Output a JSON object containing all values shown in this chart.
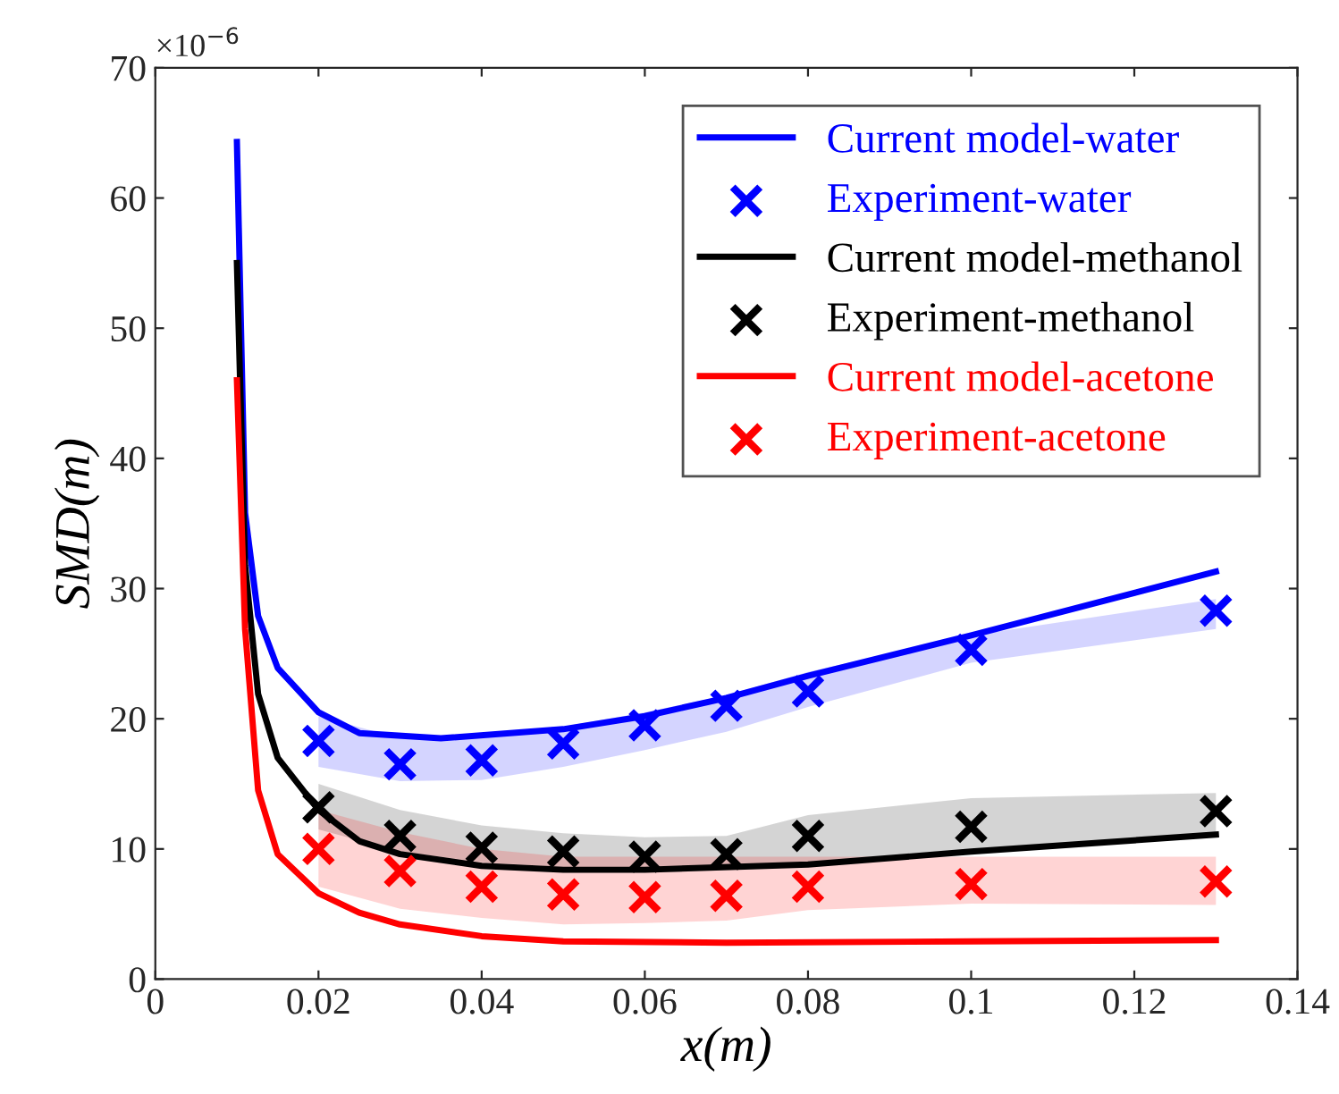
{
  "chart_data": {
    "type": "line",
    "xlabel": "x(m)",
    "ylabel": "SMD(m)",
    "annotations": [
      "×10$^{−6}$"
    ],
    "xlim": [
      0,
      0.14
    ],
    "xticks": [
      0,
      0.02,
      0.04,
      0.06,
      0.08,
      0.1,
      0.12,
      0.14
    ],
    "ylim": [
      0,
      70
    ],
    "yticks": [
      0,
      10,
      20,
      30,
      40,
      50,
      60,
      70
    ],
    "grid": false,
    "legend": "top right",
    "series": [
      {
        "name": "Current model-water",
        "color": "#0000ff",
        "x": [
          0.01,
          0.011,
          0.0126,
          0.015,
          0.02,
          0.025,
          0.035,
          0.05,
          0.06,
          0.07,
          0.08,
          0.1,
          0.13
        ],
        "values": [
          64.3,
          35.8,
          27.9,
          23.9,
          20.5,
          18.9,
          18.5,
          19.2,
          20.2,
          21.6,
          23.3,
          26.4,
          31.3
        ]
      },
      {
        "name": "Experiment-water",
        "type": "scatter",
        "marker": "cross",
        "color": "#0000ff",
        "x": [
          0.02,
          0.03,
          0.04,
          0.05,
          0.06,
          0.07,
          0.08,
          0.1,
          0.13
        ],
        "values": [
          18.3,
          16.5,
          16.8,
          18.1,
          19.5,
          21.0,
          22.1,
          25.3,
          28.3
        ],
        "lower": [
          16.3,
          15.2,
          15.3,
          16.3,
          17.6,
          19.0,
          20.9,
          24.3,
          26.9
        ],
        "upper": [
          20.2,
          18.5,
          18.5,
          19.4,
          20.5,
          21.8,
          23.6,
          26.4,
          29.2
        ]
      },
      {
        "name": "Current model-methanol",
        "color": "#000000",
        "x": [
          0.01,
          0.011,
          0.0126,
          0.015,
          0.02,
          0.025,
          0.03,
          0.04,
          0.05,
          0.06,
          0.08,
          0.1,
          0.13
        ],
        "values": [
          55.0,
          31.8,
          21.9,
          17.0,
          13.0,
          10.6,
          9.6,
          8.7,
          8.4,
          8.4,
          8.8,
          9.8,
          11.1
        ]
      },
      {
        "name": "Experiment-methanol",
        "type": "scatter",
        "marker": "cross",
        "color": "#000000",
        "x": [
          0.02,
          0.03,
          0.04,
          0.05,
          0.06,
          0.07,
          0.08,
          0.1,
          0.13
        ],
        "values": [
          13.2,
          11.0,
          10.1,
          9.8,
          9.4,
          9.6,
          11.0,
          11.7,
          12.9
        ],
        "lower": [
          11.5,
          9.8,
          9.0,
          8.6,
          8.5,
          8.6,
          9.0,
          10.0,
          11.2
        ],
        "upper": [
          15.0,
          13.0,
          11.8,
          11.2,
          10.9,
          11.0,
          12.6,
          13.9,
          14.3
        ]
      },
      {
        "name": "Current model-acetone",
        "color": "#ff0000",
        "x": [
          0.01,
          0.011,
          0.0126,
          0.015,
          0.02,
          0.025,
          0.03,
          0.04,
          0.05,
          0.07,
          0.1,
          0.13
        ],
        "values": [
          46.0,
          26.9,
          14.5,
          9.6,
          6.6,
          5.1,
          4.2,
          3.3,
          2.9,
          2.8,
          2.9,
          3.0
        ]
      },
      {
        "name": "Experiment-acetone",
        "type": "scatter",
        "marker": "cross",
        "color": "#ff0000",
        "x": [
          0.02,
          0.03,
          0.04,
          0.05,
          0.06,
          0.07,
          0.08,
          0.1,
          0.13
        ],
        "values": [
          10.0,
          8.3,
          7.1,
          6.5,
          6.3,
          6.4,
          7.1,
          7.3,
          7.5
        ],
        "lower": [
          7.1,
          5.4,
          4.7,
          4.2,
          4.3,
          4.5,
          5.3,
          5.8,
          5.7
        ],
        "upper": [
          13.0,
          11.3,
          10.0,
          9.4,
          9.4,
          9.4,
          9.4,
          9.4,
          9.4
        ]
      }
    ]
  }
}
